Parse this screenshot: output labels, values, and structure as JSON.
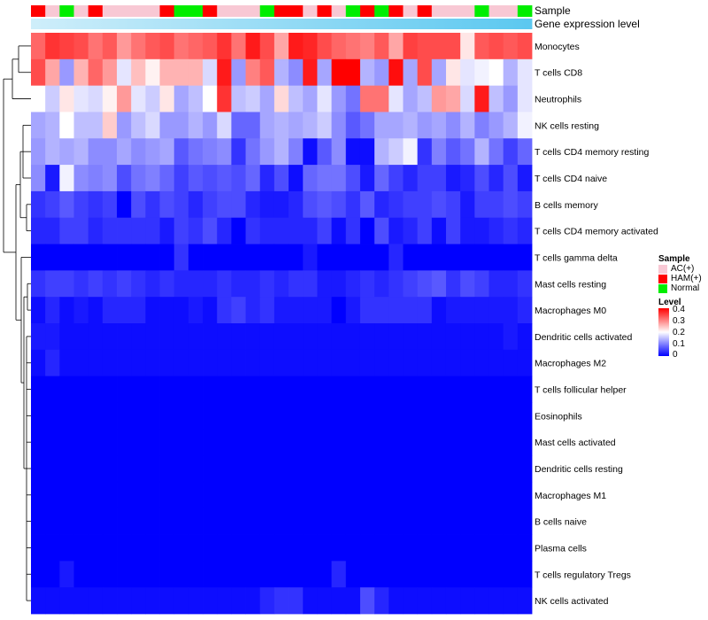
{
  "chart_data": {
    "type": "heatmap",
    "title": "",
    "annotations": [
      {
        "label": "Sample",
        "name": "Sample"
      },
      {
        "label": "Gene expression level",
        "name": "Gene expression level"
      }
    ],
    "gene_expression_color": "#5bc8f0",
    "gene_expression_light_color": "#cfeefa",
    "column_samples": [
      "HAM(+)",
      "AC(+)",
      "Normal",
      "AC(+)",
      "HAM(+)",
      "AC(+)",
      "AC(+)",
      "AC(+)",
      "AC(+)",
      "HAM(+)",
      "Normal",
      "Normal",
      "HAM(+)",
      "AC(+)",
      "AC(+)",
      "AC(+)",
      "Normal",
      "HAM(+)",
      "HAM(+)",
      "AC(+)",
      "HAM(+)",
      "AC(+)",
      "Normal",
      "HAM(+)",
      "Normal",
      "HAM(+)",
      "AC(+)",
      "HAM(+)",
      "AC(+)",
      "AC(+)",
      "AC(+)",
      "Normal",
      "AC(+)",
      "AC(+)",
      "Normal"
    ],
    "rows": [
      "Monocytes",
      "T cells CD8",
      "Neutrophils",
      "NK cells resting",
      "T cells CD4 memory resting",
      "T cells CD4 naive",
      "B cells memory",
      "T cells CD4 memory activated",
      "T cells gamma delta",
      "Mast cells resting",
      "Macrophages M0",
      "Dendritic cells activated",
      "Macrophages M2",
      "T cells follicular helper",
      "Eosinophils",
      "Mast cells activated",
      "Dendritic cells resting",
      "Macrophages M1",
      "B cells naive",
      "Plasma cells",
      "T cells regulatory  Tregs",
      "NK cells activated"
    ],
    "values": [
      [
        0.32,
        0.36,
        0.35,
        0.34,
        0.31,
        0.33,
        0.28,
        0.31,
        0.33,
        0.34,
        0.31,
        0.32,
        0.33,
        0.36,
        0.31,
        0.38,
        0.34,
        0.27,
        0.38,
        0.37,
        0.34,
        0.32,
        0.31,
        0.3,
        0.33,
        0.27,
        0.35,
        0.34,
        0.34,
        0.34,
        0.22,
        0.33,
        0.34,
        0.33,
        0.34
      ],
      [
        0.34,
        0.27,
        0.12,
        0.26,
        0.32,
        0.28,
        0.18,
        0.25,
        0.21,
        0.26,
        0.26,
        0.26,
        0.17,
        0.38,
        0.12,
        0.3,
        0.33,
        0.14,
        0.11,
        0.38,
        0.13,
        0.4,
        0.4,
        0.14,
        0.12,
        0.39,
        0.13,
        0.34,
        0.13,
        0.22,
        0.18,
        0.19,
        0.2,
        0.14,
        0.18
      ],
      [
        0.2,
        0.16,
        0.22,
        0.18,
        0.17,
        0.21,
        0.28,
        0.18,
        0.16,
        0.22,
        0.13,
        0.15,
        0.2,
        0.36,
        0.15,
        0.16,
        0.13,
        0.23,
        0.15,
        0.13,
        0.18,
        0.12,
        0.09,
        0.31,
        0.31,
        0.18,
        0.13,
        0.15,
        0.28,
        0.27,
        0.17,
        0.38,
        0.15,
        0.12,
        0.18
      ],
      [
        0.13,
        0.14,
        0.2,
        0.15,
        0.15,
        0.24,
        0.12,
        0.15,
        0.17,
        0.12,
        0.12,
        0.14,
        0.12,
        0.17,
        0.08,
        0.08,
        0.13,
        0.14,
        0.13,
        0.14,
        0.16,
        0.11,
        0.07,
        0.09,
        0.13,
        0.13,
        0.14,
        0.12,
        0.13,
        0.11,
        0.14,
        0.1,
        0.12,
        0.14,
        0.19
      ],
      [
        0.12,
        0.14,
        0.13,
        0.14,
        0.11,
        0.11,
        0.13,
        0.11,
        0.12,
        0.13,
        0.07,
        0.09,
        0.1,
        0.11,
        0.04,
        0.09,
        0.12,
        0.14,
        0.1,
        0.01,
        0.07,
        0.11,
        0.01,
        0.01,
        0.14,
        0.16,
        0.19,
        0.04,
        0.1,
        0.07,
        0.09,
        0.14,
        0.09,
        0.05,
        0.08
      ],
      [
        0.11,
        0.02,
        0.19,
        0.11,
        0.1,
        0.11,
        0.06,
        0.09,
        0.1,
        0.08,
        0.05,
        0.07,
        0.06,
        0.07,
        0.06,
        0.08,
        0.03,
        0.06,
        0.01,
        0.08,
        0.09,
        0.09,
        0.06,
        0.02,
        0.08,
        0.05,
        0.03,
        0.05,
        0.05,
        0.02,
        0.03,
        0.06,
        0.03,
        0.06,
        0.02
      ],
      [
        0.04,
        0.05,
        0.07,
        0.05,
        0.04,
        0.05,
        0.0,
        0.06,
        0.04,
        0.06,
        0.05,
        0.03,
        0.05,
        0.06,
        0.06,
        0.03,
        0.02,
        0.02,
        0.03,
        0.06,
        0.07,
        0.06,
        0.04,
        0.07,
        0.03,
        0.04,
        0.05,
        0.05,
        0.06,
        0.05,
        0.02,
        0.05,
        0.05,
        0.06,
        0.05
      ],
      [
        0.03,
        0.03,
        0.05,
        0.05,
        0.03,
        0.04,
        0.04,
        0.04,
        0.04,
        0.02,
        0.05,
        0.04,
        0.06,
        0.03,
        0.0,
        0.04,
        0.03,
        0.03,
        0.03,
        0.03,
        0.05,
        0.01,
        0.04,
        0.0,
        0.06,
        0.02,
        0.03,
        0.05,
        0.01,
        0.05,
        0.02,
        0.02,
        0.03,
        0.04,
        0.03
      ],
      [
        0.0,
        0.0,
        0.0,
        0.0,
        0.0,
        0.0,
        0.0,
        0.0,
        0.0,
        0.0,
        0.04,
        0.0,
        0.0,
        0.0,
        0.0,
        0.0,
        0.0,
        0.0,
        0.0,
        0.02,
        0.0,
        0.0,
        0.0,
        0.0,
        0.0,
        0.03,
        0.0,
        0.0,
        0.0,
        0.0,
        0.0,
        0.0,
        0.0,
        0.0,
        0.0
      ],
      [
        0.04,
        0.05,
        0.05,
        0.04,
        0.05,
        0.04,
        0.05,
        0.04,
        0.03,
        0.04,
        0.03,
        0.03,
        0.03,
        0.04,
        0.03,
        0.03,
        0.04,
        0.03,
        0.04,
        0.04,
        0.02,
        0.02,
        0.03,
        0.04,
        0.03,
        0.04,
        0.05,
        0.06,
        0.07,
        0.04,
        0.06,
        0.05,
        0.03,
        0.03,
        0.04
      ],
      [
        0.01,
        0.03,
        0.01,
        0.02,
        0.01,
        0.03,
        0.03,
        0.03,
        0.01,
        0.01,
        0.01,
        0.02,
        0.01,
        0.04,
        0.05,
        0.03,
        0.04,
        0.02,
        0.02,
        0.02,
        0.02,
        0.0,
        0.02,
        0.04,
        0.04,
        0.04,
        0.04,
        0.04,
        0.01,
        0.02,
        0.02,
        0.02,
        0.02,
        0.02,
        0.03
      ],
      [
        0.02,
        0.02,
        0.01,
        0.01,
        0.01,
        0.01,
        0.01,
        0.01,
        0.01,
        0.01,
        0.01,
        0.01,
        0.01,
        0.01,
        0.01,
        0.01,
        0.01,
        0.01,
        0.01,
        0.01,
        0.01,
        0.01,
        0.01,
        0.01,
        0.01,
        0.01,
        0.01,
        0.01,
        0.01,
        0.01,
        0.01,
        0.01,
        0.01,
        0.02,
        0.01
      ],
      [
        0.01,
        0.03,
        0.01,
        0.01,
        0.01,
        0.01,
        0.01,
        0.01,
        0.01,
        0.01,
        0.01,
        0.01,
        0.01,
        0.01,
        0.01,
        0.01,
        0.01,
        0.01,
        0.01,
        0.01,
        0.01,
        0.01,
        0.01,
        0.01,
        0.01,
        0.01,
        0.01,
        0.01,
        0.01,
        0.01,
        0.01,
        0.01,
        0.01,
        0.01,
        0.01
      ],
      [
        0.0,
        0.0,
        0.0,
        0.0,
        0.0,
        0.0,
        0.0,
        0.0,
        0.0,
        0.0,
        0.0,
        0.0,
        0.0,
        0.0,
        0.0,
        0.0,
        0.0,
        0.0,
        0.0,
        0.0,
        0.0,
        0.0,
        0.0,
        0.0,
        0.0,
        0.0,
        0.0,
        0.0,
        0.0,
        0.0,
        0.0,
        0.0,
        0.0,
        0.0,
        0.0
      ],
      [
        0.0,
        0.0,
        0.0,
        0.0,
        0.0,
        0.0,
        0.0,
        0.0,
        0.0,
        0.0,
        0.0,
        0.0,
        0.0,
        0.0,
        0.0,
        0.0,
        0.0,
        0.0,
        0.0,
        0.0,
        0.0,
        0.0,
        0.0,
        0.0,
        0.0,
        0.0,
        0.0,
        0.0,
        0.0,
        0.0,
        0.0,
        0.0,
        0.0,
        0.0,
        0.0
      ],
      [
        0.0,
        0.0,
        0.0,
        0.0,
        0.0,
        0.0,
        0.0,
        0.0,
        0.0,
        0.0,
        0.0,
        0.0,
        0.0,
        0.0,
        0.0,
        0.0,
        0.0,
        0.0,
        0.0,
        0.0,
        0.0,
        0.0,
        0.0,
        0.0,
        0.0,
        0.0,
        0.0,
        0.0,
        0.0,
        0.0,
        0.0,
        0.0,
        0.0,
        0.0,
        0.0
      ],
      [
        0.0,
        0.0,
        0.0,
        0.0,
        0.0,
        0.0,
        0.0,
        0.0,
        0.0,
        0.0,
        0.0,
        0.0,
        0.0,
        0.0,
        0.0,
        0.0,
        0.0,
        0.0,
        0.0,
        0.0,
        0.0,
        0.0,
        0.0,
        0.0,
        0.0,
        0.0,
        0.0,
        0.0,
        0.0,
        0.0,
        0.0,
        0.0,
        0.0,
        0.0,
        0.0
      ],
      [
        0.0,
        0.0,
        0.0,
        0.0,
        0.0,
        0.0,
        0.0,
        0.0,
        0.0,
        0.0,
        0.0,
        0.0,
        0.0,
        0.0,
        0.0,
        0.0,
        0.0,
        0.0,
        0.0,
        0.0,
        0.0,
        0.0,
        0.0,
        0.0,
        0.0,
        0.0,
        0.0,
        0.0,
        0.0,
        0.0,
        0.0,
        0.0,
        0.0,
        0.0,
        0.0
      ],
      [
        0.0,
        0.0,
        0.0,
        0.0,
        0.0,
        0.0,
        0.0,
        0.0,
        0.0,
        0.0,
        0.0,
        0.0,
        0.0,
        0.0,
        0.0,
        0.0,
        0.0,
        0.0,
        0.0,
        0.0,
        0.0,
        0.0,
        0.0,
        0.0,
        0.0,
        0.0,
        0.0,
        0.0,
        0.0,
        0.0,
        0.0,
        0.0,
        0.0,
        0.0,
        0.0
      ],
      [
        0.0,
        0.0,
        0.0,
        0.0,
        0.0,
        0.0,
        0.0,
        0.0,
        0.0,
        0.0,
        0.0,
        0.0,
        0.0,
        0.0,
        0.0,
        0.0,
        0.0,
        0.0,
        0.0,
        0.0,
        0.0,
        0.0,
        0.0,
        0.0,
        0.0,
        0.0,
        0.0,
        0.0,
        0.0,
        0.0,
        0.0,
        0.0,
        0.0,
        0.0,
        0.0
      ],
      [
        0.0,
        0.0,
        0.02,
        0.0,
        0.0,
        0.0,
        0.0,
        0.0,
        0.0,
        0.0,
        0.0,
        0.0,
        0.0,
        0.0,
        0.0,
        0.0,
        0.0,
        0.0,
        0.0,
        0.0,
        0.0,
        0.03,
        0.0,
        0.0,
        0.0,
        0.0,
        0.0,
        0.0,
        0.0,
        0.0,
        0.0,
        0.0,
        0.0,
        0.0,
        0.0
      ],
      [
        0.01,
        0.01,
        0.01,
        0.01,
        0.01,
        0.01,
        0.01,
        0.01,
        0.01,
        0.01,
        0.01,
        0.01,
        0.01,
        0.01,
        0.01,
        0.01,
        0.03,
        0.04,
        0.04,
        0.01,
        0.01,
        0.01,
        0.01,
        0.06,
        0.03,
        0.01,
        0.01,
        0.01,
        0.01,
        0.01,
        0.01,
        0.01,
        0.01,
        0.01,
        0.01
      ]
    ],
    "legend": {
      "sample_title": "Sample",
      "sample_items": [
        {
          "label": "AC(+)",
          "color": "#f8c8d4"
        },
        {
          "label": "HAM(+)",
          "color": "#ff0000"
        },
        {
          "label": "Normal",
          "color": "#00ee00"
        }
      ],
      "level_title": "Level",
      "level_ticks": [
        "0.4",
        "0.3",
        "0.2",
        "0.1",
        "0"
      ],
      "level_range": [
        0,
        0.4
      ],
      "colors": {
        "low": "#0000ff",
        "mid": "#ffffff",
        "high": "#ff0000"
      }
    }
  }
}
